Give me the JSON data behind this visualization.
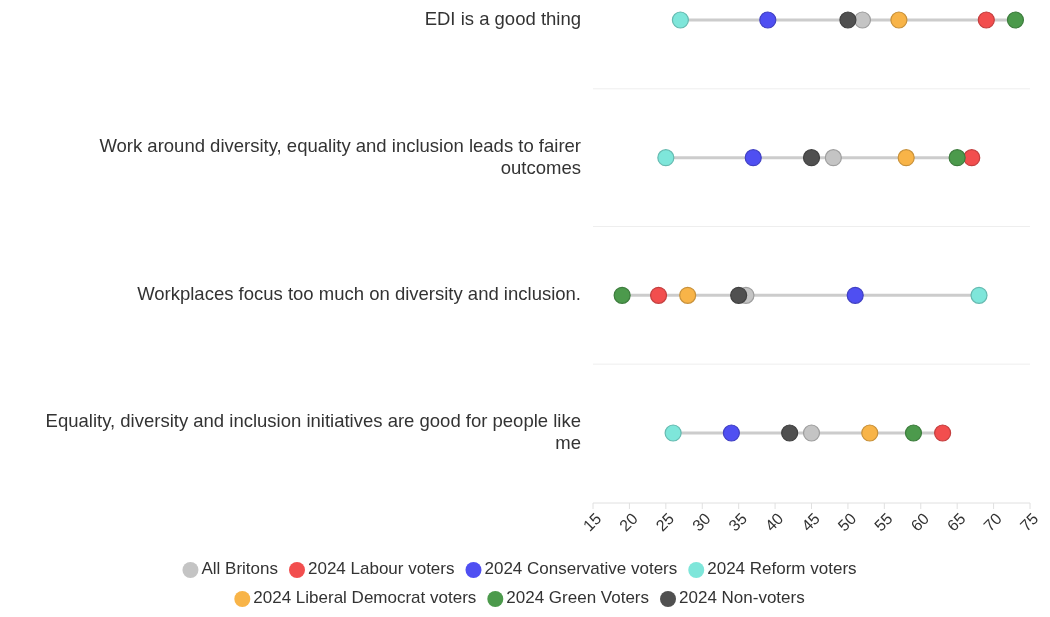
{
  "chart_data": {
    "type": "scatter",
    "orientation": "horizontal",
    "categories": [
      "EDI is a good thing",
      "Work around diversity, equality and inclusion leads to fairer outcomes",
      "Workplaces focus too much on diversity and inclusion.",
      "Equality, diversity and inclusion initiatives are good for people like me"
    ],
    "xlim": [
      15,
      75
    ],
    "xticks": [
      15,
      20,
      25,
      30,
      35,
      40,
      45,
      50,
      55,
      60,
      65,
      70,
      75
    ],
    "grid": false,
    "marker": "circle",
    "legend": "bottom",
    "series": [
      {
        "name": "All Britons",
        "color": "#c4c4c4",
        "values": [
          52,
          48,
          36,
          45
        ]
      },
      {
        "name": "2024 Labour voters",
        "color": "#f24e4e",
        "values": [
          69,
          67,
          24,
          63
        ]
      },
      {
        "name": "2024 Conservative voters",
        "color": "#4f4ff2",
        "values": [
          39,
          37,
          51,
          34
        ]
      },
      {
        "name": "2024 Reform voters",
        "color": "#7ee6da",
        "values": [
          27,
          25,
          68,
          26
        ]
      },
      {
        "name": "2024 Liberal Democrat voters",
        "color": "#f8b448",
        "values": [
          57,
          58,
          28,
          53
        ]
      },
      {
        "name": "2024 Green Voters",
        "color": "#4c9a4c",
        "values": [
          73,
          65,
          19,
          59
        ]
      },
      {
        "name": "2024 Non-voters",
        "color": "#505050",
        "values": [
          50,
          45,
          35,
          42
        ]
      }
    ]
  }
}
